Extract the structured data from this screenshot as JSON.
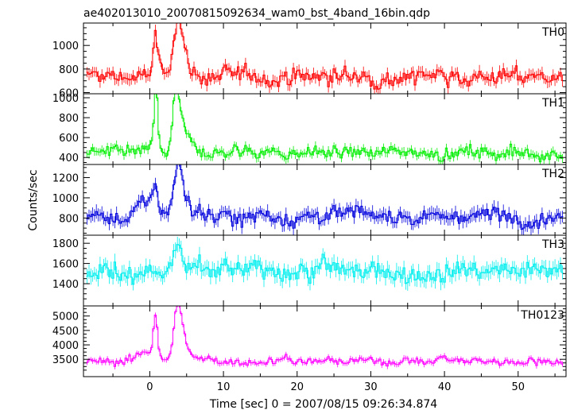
{
  "chart_data": {
    "type": "line",
    "title": "ae402013010_20070815092634_wam0_bst_4band_16bin.qdp",
    "xlabel": "Time [sec] 0 = 2007/08/15 09:26:34.874",
    "ylabel": "Counts/sec",
    "xlim": [
      -9,
      56.5
    ],
    "x_ticks": [
      0,
      10,
      20,
      30,
      40,
      50
    ],
    "x_tick_labels": [
      "0",
      "10",
      "20",
      "30",
      "40",
      "50"
    ],
    "bin_sec": 0.25,
    "grid": false,
    "panels": [
      {
        "name": "TH0",
        "color": "#ff0000",
        "ylim": [
          590,
          1190
        ],
        "y_ticks": [
          600,
          800,
          1000
        ],
        "y_tick_labels": [
          "600",
          "800",
          "1000"
        ],
        "baseline": 735,
        "noise": 50,
        "err": 45,
        "peaks": [
          {
            "x": 0.8,
            "h": 330,
            "w": 0.35
          },
          {
            "x": 3.8,
            "h": 420,
            "w": 0.55
          },
          {
            "x": 4.6,
            "h": 180,
            "w": 0.8
          },
          {
            "x": 39.6,
            "h": 110,
            "w": 0.4
          }
        ]
      },
      {
        "name": "TH1",
        "color": "#00ee00",
        "ylim": [
          330,
          1040
        ],
        "y_ticks": [
          400,
          600,
          800,
          1000
        ],
        "y_tick_labels": [
          "400",
          "600",
          "800",
          "1000"
        ],
        "baseline": 450,
        "noise": 45,
        "err": 40,
        "peaks": [
          {
            "x": 0.6,
            "h": 230,
            "w": 0.25
          },
          {
            "x": 0.9,
            "h": 530,
            "w": 0.2
          },
          {
            "x": 3.6,
            "h": 520,
            "w": 0.45
          },
          {
            "x": 4.5,
            "h": 200,
            "w": 0.8
          }
        ]
      },
      {
        "name": "TH2",
        "color": "#0000dd",
        "ylim": [
          630,
          1330
        ],
        "y_ticks": [
          800,
          1000,
          1200
        ],
        "y_tick_labels": [
          "800",
          "1000",
          "1200"
        ],
        "baseline": 820,
        "noise": 55,
        "err": 60,
        "peaks": [
          {
            "x": -0.4,
            "h": 150,
            "w": 1.0
          },
          {
            "x": 0.7,
            "h": 260,
            "w": 0.3
          },
          {
            "x": 3.8,
            "h": 460,
            "w": 0.55
          },
          {
            "x": 4.6,
            "h": 180,
            "w": 0.8
          }
        ]
      },
      {
        "name": "TH3",
        "color": "#00eeee",
        "ylim": [
          1180,
          1880
        ],
        "y_ticks": [
          1400,
          1600,
          1800
        ],
        "y_tick_labels": [
          "1400",
          "1600",
          "1800"
        ],
        "baseline": 1520,
        "noise": 65,
        "err": 70,
        "peaks": [
          {
            "x": 3.8,
            "h": 260,
            "w": 0.5
          },
          {
            "x": 23.6,
            "h": 200,
            "w": 0.15
          }
        ]
      },
      {
        "name": "TH0123",
        "color": "#ff00ff",
        "ylim": [
          2900,
          5350
        ],
        "y_ticks": [
          3500,
          4000,
          4500,
          5000
        ],
        "y_tick_labels": [
          "3500",
          "4000",
          "4500",
          "5000"
        ],
        "baseline": 3440,
        "noise": 95,
        "err": 90,
        "peaks": [
          {
            "x": -0.4,
            "h": 350,
            "w": 1.0
          },
          {
            "x": 0.8,
            "h": 1450,
            "w": 0.3
          },
          {
            "x": 3.8,
            "h": 1650,
            "w": 0.55
          },
          {
            "x": 4.6,
            "h": 550,
            "w": 0.8
          },
          {
            "x": 18.6,
            "h": 280,
            "w": 0.4
          },
          {
            "x": 39.6,
            "h": 200,
            "w": 0.4
          }
        ]
      }
    ]
  }
}
